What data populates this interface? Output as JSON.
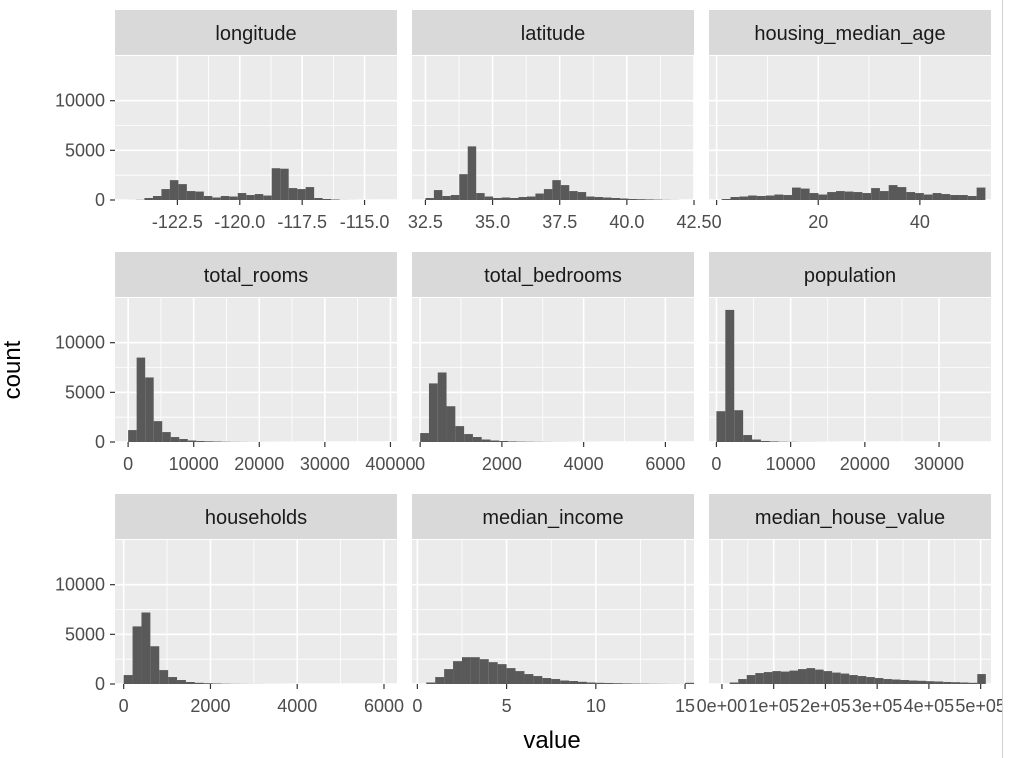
{
  "colors": {
    "panel_bg": "#EBEBEB",
    "strip_bg": "#D9D9D9",
    "grid_major": "#FFFFFF",
    "bar_fill": "#595959",
    "tick_text": "#4D4D4D"
  },
  "chart_data": {
    "type": "bar",
    "subtype": "faceted-histogram",
    "xlabel": "value",
    "ylabel": "count",
    "y_scale": "shared",
    "ylim": [
      0,
      14500
    ],
    "y_ticks": [
      0,
      5000,
      10000
    ],
    "y_tick_labels": [
      "0",
      "5000",
      "10000"
    ],
    "grid": true,
    "panels": [
      {
        "title": "longitude",
        "xlim": [
          -125.0,
          -113.7
        ],
        "x_ticks": [
          -122.5,
          -120.0,
          -117.5,
          -115.0
        ],
        "x_tick_labels": [
          "-122.5",
          "-120.0",
          "-117.5",
          "-115.0"
        ],
        "bin_start": -124.5,
        "bin_width": 0.34,
        "counts": [
          5,
          20,
          200,
          400,
          1100,
          2000,
          1600,
          900,
          850,
          400,
          250,
          400,
          350,
          700,
          500,
          600,
          450,
          3200,
          3150,
          1200,
          1100,
          1300,
          200,
          100,
          50,
          10,
          5,
          2,
          1,
          0
        ]
      },
      {
        "title": "latitude",
        "xlim": [
          32.0,
          42.5
        ],
        "x_ticks": [
          32.5,
          35.0,
          37.5,
          40.0,
          42.5
        ],
        "x_tick_labels": [
          "32.5",
          "35.0",
          "37.5",
          "40.0",
          "42.5"
        ],
        "bin_start": 32.5,
        "bin_width": 0.315,
        "counts": [
          200,
          1000,
          400,
          500,
          2600,
          5400,
          700,
          350,
          200,
          250,
          200,
          300,
          350,
          650,
          1100,
          2000,
          1500,
          900,
          800,
          350,
          300,
          250,
          200,
          150,
          100,
          80,
          60,
          40,
          20,
          10
        ]
      },
      {
        "title": "housing_median_age",
        "xlim": [
          -1.5,
          54.0
        ],
        "x_ticks": [
          0,
          20,
          40
        ],
        "x_tick_labels": [
          "0",
          "20",
          "40"
        ],
        "bin_start": 1.0,
        "bin_width": 1.73,
        "counts": [
          100,
          300,
          350,
          450,
          400,
          450,
          550,
          500,
          1250,
          1150,
          700,
          550,
          800,
          900,
          850,
          800,
          700,
          1200,
          900,
          1500,
          1300,
          800,
          700,
          550,
          700,
          600,
          500,
          500,
          400,
          1250
        ]
      },
      {
        "title": "total_rooms",
        "xlim": [
          -2000,
          41000
        ],
        "x_ticks": [
          0,
          10000,
          20000,
          30000,
          40000
        ],
        "x_tick_labels": [
          "0",
          "10000",
          "20000",
          "30000",
          "40000"
        ],
        "bin_start": 0,
        "bin_width": 1300,
        "counts": [
          1200,
          8500,
          6500,
          2100,
          1000,
          500,
          300,
          150,
          100,
          70,
          50,
          30,
          20,
          15,
          10,
          8,
          5,
          4,
          3,
          2,
          2,
          1,
          1,
          1,
          1,
          0,
          0,
          0,
          0,
          1
        ]
      },
      {
        "title": "total_bedrooms",
        "xlim": [
          -200,
          6700
        ],
        "x_ticks": [
          0,
          2000,
          4000,
          6000
        ],
        "x_tick_labels": [
          "0",
          "2000",
          "4000",
          "6000"
        ],
        "bin_start": 0,
        "bin_width": 215,
        "counts": [
          900,
          5900,
          7000,
          3600,
          1600,
          800,
          500,
          250,
          150,
          100,
          60,
          40,
          30,
          20,
          15,
          10,
          8,
          5,
          4,
          3,
          2,
          2,
          1,
          1,
          1,
          1,
          0,
          0,
          0,
          1
        ]
      },
      {
        "title": "population",
        "xlim": [
          -1000,
          37000
        ],
        "x_ticks": [
          0,
          10000,
          20000,
          30000
        ],
        "x_tick_labels": [
          "0",
          "10000",
          "20000",
          "30000"
        ],
        "bin_start": 0,
        "bin_width": 1200,
        "counts": [
          3100,
          13300,
          3200,
          700,
          250,
          100,
          60,
          30,
          20,
          10,
          8,
          5,
          4,
          3,
          2,
          2,
          1,
          1,
          1,
          1,
          1,
          0,
          0,
          0,
          0,
          0,
          0,
          0,
          0,
          1
        ]
      },
      {
        "title": "households",
        "xlim": [
          -200,
          6300
        ],
        "x_ticks": [
          0,
          2000,
          4000,
          6000
        ],
        "x_tick_labels": [
          "0",
          "2000",
          "4000",
          "6000"
        ],
        "bin_start": 0,
        "bin_width": 205,
        "counts": [
          900,
          5800,
          7200,
          3800,
          1400,
          700,
          400,
          200,
          120,
          80,
          50,
          30,
          20,
          15,
          10,
          8,
          5,
          4,
          3,
          2,
          2,
          1,
          1,
          1,
          1,
          0,
          0,
          0,
          0,
          1
        ]
      },
      {
        "title": "median_income",
        "xlim": [
          -0.3,
          15.5
        ],
        "x_ticks": [
          0,
          5,
          10,
          15
        ],
        "x_tick_labels": [
          "0",
          "5",
          "10",
          "15"
        ],
        "bin_start": 0.5,
        "bin_width": 0.5,
        "counts": [
          150,
          700,
          1500,
          2300,
          2700,
          2700,
          2500,
          2200,
          2000,
          1600,
          1300,
          1000,
          800,
          600,
          500,
          350,
          300,
          220,
          150,
          120,
          100,
          80,
          60,
          45,
          35,
          25,
          20,
          15,
          10,
          120
        ]
      },
      {
        "title": "median_house_value",
        "xlim": [
          -25000,
          520000
        ],
        "x_ticks": [
          0,
          100000,
          200000,
          300000,
          400000,
          500000
        ],
        "x_tick_labels": [
          "0e+00",
          "1e+05",
          "2e+05",
          "3e+05",
          "4e+05",
          "5e+05"
        ],
        "bin_start": 15000,
        "bin_width": 16500,
        "counts": [
          150,
          500,
          900,
          1100,
          1200,
          1300,
          1250,
          1350,
          1500,
          1600,
          1450,
          1300,
          1150,
          1050,
          900,
          800,
          700,
          600,
          500,
          450,
          400,
          350,
          320,
          280,
          250,
          200,
          180,
          150,
          120,
          1000
        ]
      }
    ]
  }
}
